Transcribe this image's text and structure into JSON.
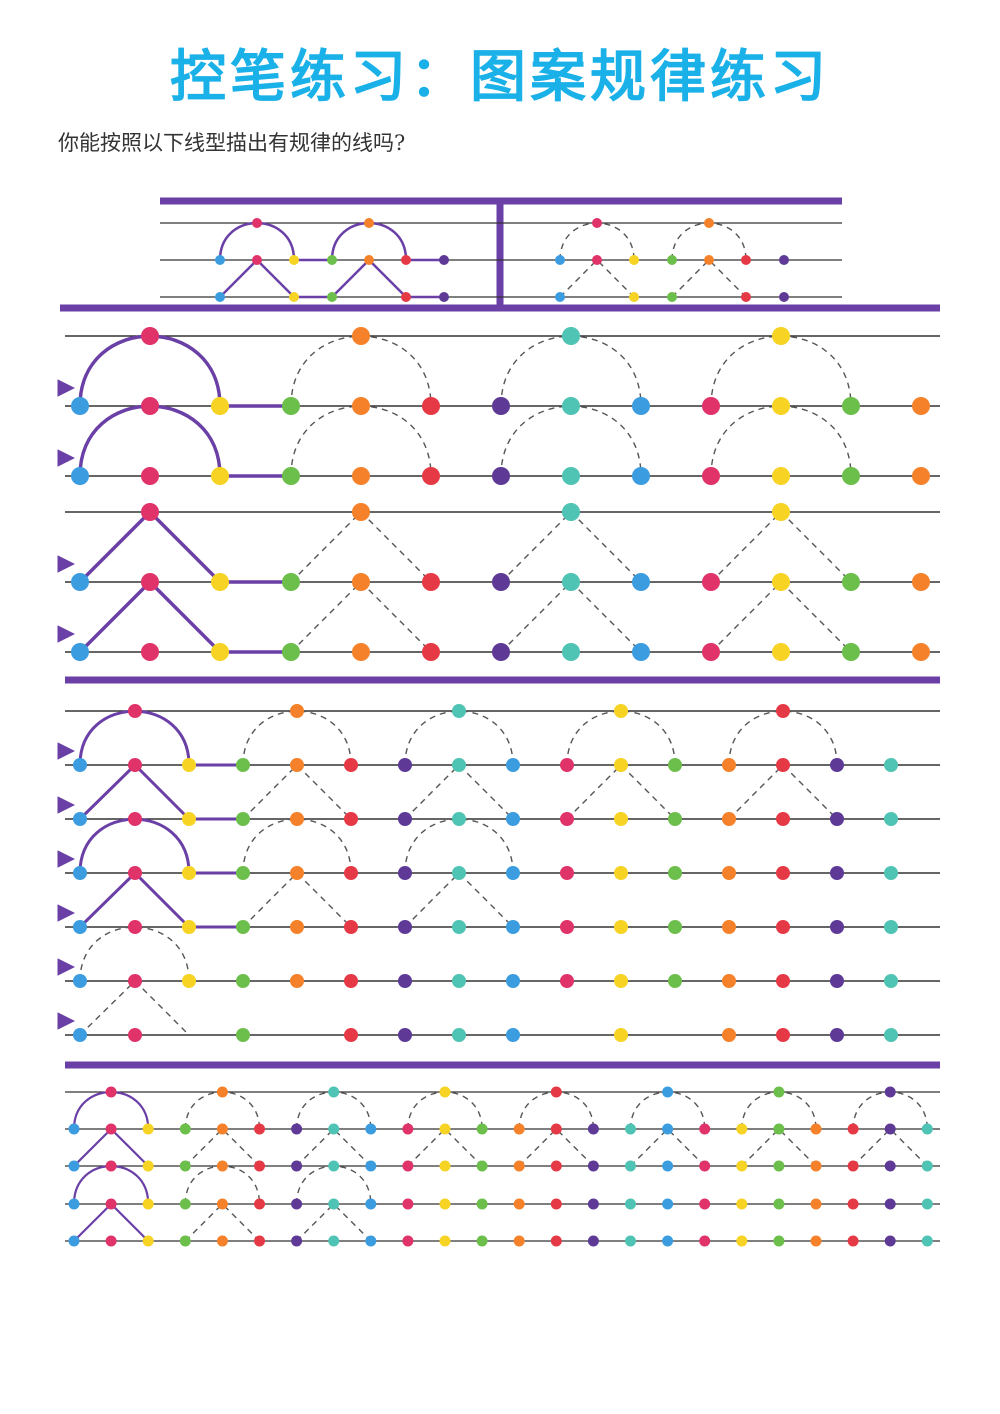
{
  "title": "控笔练习：图案规律练习",
  "instruction": "你能按照以下线型描出有规律的线吗?",
  "palette": {
    "blue": "#3b9de0",
    "red": "#e63946",
    "crimson": "#e0336a",
    "yellow": "#f7d324",
    "green": "#6bbf4a",
    "orange": "#f5822a",
    "purple": "#5e3a96",
    "teal": "#4fc4b4",
    "guide_line": "#333333",
    "divider": "#6a3fa6",
    "dash": "#555555"
  },
  "dot_color_sequence": [
    "blue",
    "crimson",
    "yellow",
    "green",
    "orange",
    "red",
    "purple",
    "teal",
    "blue",
    "crimson",
    "yellow",
    "green",
    "orange",
    "red",
    "purple",
    "teal"
  ],
  "sections": [
    {
      "id": "example",
      "pattern": "arch-and-zigzag",
      "rows": 2
    },
    {
      "id": "large-arches",
      "pattern": "arch",
      "rows": 2
    },
    {
      "id": "large-zigzags",
      "pattern": "zigzag",
      "rows": 2
    },
    {
      "id": "medium-mixed",
      "pattern": "arch-and-zigzag",
      "rows": 6
    },
    {
      "id": "small-mixed",
      "pattern": "arch-and-zigzag",
      "rows": 4
    }
  ]
}
